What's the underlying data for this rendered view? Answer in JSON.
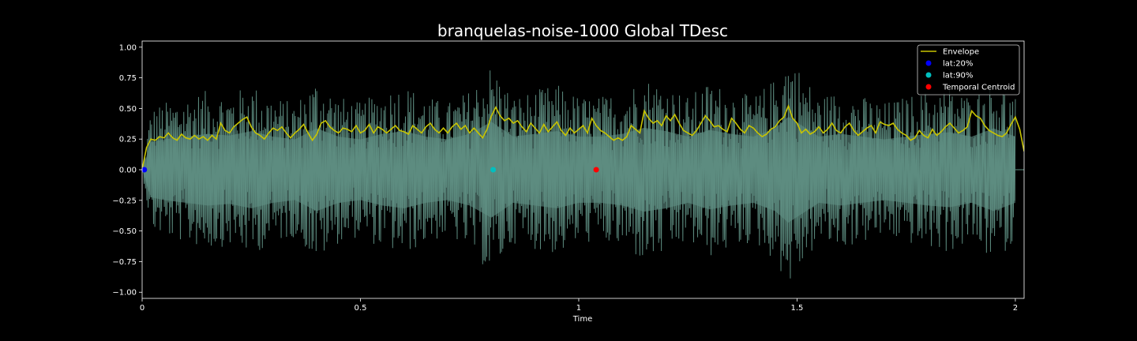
{
  "chart_data": {
    "type": "line",
    "title": "branquelas-noise-1000 Global TDesc",
    "xlabel": "Time",
    "ylabel": "",
    "xlim": [
      0,
      2.02
    ],
    "ylim": [
      -1.05,
      1.05
    ],
    "xticks": [
      0,
      0.5,
      1,
      1.5,
      2
    ],
    "xtick_labels": [
      "0",
      "0.5",
      "1",
      "1.5",
      "2"
    ],
    "yticks": [
      -1.0,
      -0.75,
      -0.5,
      -0.25,
      0.0,
      0.25,
      0.5,
      0.75,
      1.0
    ],
    "ytick_labels": [
      "−1.00",
      "−0.75",
      "−0.50",
      "−0.25",
      "0.00",
      "0.25",
      "0.50",
      "0.75",
      "1.00"
    ],
    "grid": false,
    "legend_position": "top-right",
    "signal": {
      "description_color": "#5f8f83",
      "fill_color": "#3a5650",
      "t_start": 0.0,
      "t_end": 2.0,
      "peak_envelope": [
        [
          0.0,
          0.0
        ],
        [
          0.02,
          0.5
        ],
        [
          0.05,
          0.55
        ],
        [
          0.1,
          0.6
        ],
        [
          0.15,
          0.65
        ],
        [
          0.2,
          0.62
        ],
        [
          0.25,
          0.7
        ],
        [
          0.3,
          0.6
        ],
        [
          0.35,
          0.55
        ],
        [
          0.4,
          0.75
        ],
        [
          0.45,
          0.6
        ],
        [
          0.5,
          0.55
        ],
        [
          0.55,
          0.65
        ],
        [
          0.6,
          0.7
        ],
        [
          0.65,
          0.6
        ],
        [
          0.7,
          0.55
        ],
        [
          0.75,
          0.65
        ],
        [
          0.8,
          0.87
        ],
        [
          0.85,
          0.6
        ],
        [
          0.9,
          0.65
        ],
        [
          0.95,
          0.7
        ],
        [
          1.0,
          0.6
        ],
        [
          1.05,
          0.6
        ],
        [
          1.1,
          0.65
        ],
        [
          1.15,
          0.76
        ],
        [
          1.2,
          0.7
        ],
        [
          1.25,
          0.6
        ],
        [
          1.3,
          0.72
        ],
        [
          1.35,
          0.65
        ],
        [
          1.4,
          0.6
        ],
        [
          1.45,
          0.75
        ],
        [
          1.48,
          0.96
        ],
        [
          1.55,
          0.6
        ],
        [
          1.6,
          0.65
        ],
        [
          1.65,
          0.6
        ],
        [
          1.7,
          0.55
        ],
        [
          1.75,
          0.6
        ],
        [
          1.8,
          0.65
        ],
        [
          1.85,
          0.68
        ],
        [
          1.9,
          0.6
        ],
        [
          1.95,
          0.75
        ],
        [
          2.0,
          0.6
        ]
      ]
    },
    "envelope": {
      "name": "Envelope",
      "color": "#c8c400",
      "points": [
        [
          0.0,
          0.0
        ],
        [
          0.01,
          0.18
        ],
        [
          0.02,
          0.25
        ],
        [
          0.03,
          0.24
        ],
        [
          0.04,
          0.27
        ],
        [
          0.05,
          0.26
        ],
        [
          0.06,
          0.3
        ],
        [
          0.07,
          0.26
        ],
        [
          0.08,
          0.24
        ],
        [
          0.09,
          0.29
        ],
        [
          0.1,
          0.26
        ],
        [
          0.11,
          0.25
        ],
        [
          0.12,
          0.28
        ],
        [
          0.13,
          0.25
        ],
        [
          0.14,
          0.27
        ],
        [
          0.15,
          0.24
        ],
        [
          0.16,
          0.28
        ],
        [
          0.17,
          0.25
        ],
        [
          0.18,
          0.38
        ],
        [
          0.19,
          0.32
        ],
        [
          0.2,
          0.3
        ],
        [
          0.21,
          0.35
        ],
        [
          0.22,
          0.38
        ],
        [
          0.23,
          0.41
        ],
        [
          0.24,
          0.43
        ],
        [
          0.25,
          0.35
        ],
        [
          0.26,
          0.3
        ],
        [
          0.27,
          0.28
        ],
        [
          0.28,
          0.25
        ],
        [
          0.29,
          0.3
        ],
        [
          0.3,
          0.34
        ],
        [
          0.31,
          0.32
        ],
        [
          0.32,
          0.35
        ],
        [
          0.33,
          0.3
        ],
        [
          0.34,
          0.26
        ],
        [
          0.35,
          0.3
        ],
        [
          0.36,
          0.33
        ],
        [
          0.37,
          0.37
        ],
        [
          0.38,
          0.3
        ],
        [
          0.39,
          0.24
        ],
        [
          0.4,
          0.29
        ],
        [
          0.41,
          0.38
        ],
        [
          0.42,
          0.4
        ],
        [
          0.43,
          0.35
        ],
        [
          0.44,
          0.32
        ],
        [
          0.45,
          0.3
        ],
        [
          0.46,
          0.34
        ],
        [
          0.47,
          0.33
        ],
        [
          0.48,
          0.31
        ],
        [
          0.49,
          0.36
        ],
        [
          0.5,
          0.3
        ],
        [
          0.51,
          0.32
        ],
        [
          0.52,
          0.37
        ],
        [
          0.53,
          0.3
        ],
        [
          0.54,
          0.35
        ],
        [
          0.55,
          0.33
        ],
        [
          0.56,
          0.3
        ],
        [
          0.57,
          0.33
        ],
        [
          0.58,
          0.36
        ],
        [
          0.59,
          0.32
        ],
        [
          0.6,
          0.31
        ],
        [
          0.61,
          0.29
        ],
        [
          0.62,
          0.36
        ],
        [
          0.63,
          0.33
        ],
        [
          0.64,
          0.3
        ],
        [
          0.65,
          0.35
        ],
        [
          0.66,
          0.38
        ],
        [
          0.67,
          0.33
        ],
        [
          0.68,
          0.3
        ],
        [
          0.69,
          0.34
        ],
        [
          0.7,
          0.3
        ],
        [
          0.71,
          0.35
        ],
        [
          0.72,
          0.38
        ],
        [
          0.73,
          0.33
        ],
        [
          0.74,
          0.36
        ],
        [
          0.75,
          0.3
        ],
        [
          0.76,
          0.34
        ],
        [
          0.77,
          0.3
        ],
        [
          0.78,
          0.26
        ],
        [
          0.79,
          0.33
        ],
        [
          0.8,
          0.44
        ],
        [
          0.81,
          0.51
        ],
        [
          0.82,
          0.44
        ],
        [
          0.83,
          0.4
        ],
        [
          0.84,
          0.42
        ],
        [
          0.85,
          0.38
        ],
        [
          0.86,
          0.4
        ],
        [
          0.87,
          0.35
        ],
        [
          0.88,
          0.31
        ],
        [
          0.89,
          0.38
        ],
        [
          0.9,
          0.34
        ],
        [
          0.91,
          0.3
        ],
        [
          0.92,
          0.37
        ],
        [
          0.93,
          0.31
        ],
        [
          0.94,
          0.35
        ],
        [
          0.95,
          0.39
        ],
        [
          0.96,
          0.32
        ],
        [
          0.97,
          0.28
        ],
        [
          0.98,
          0.34
        ],
        [
          0.99,
          0.3
        ],
        [
          1.0,
          0.33
        ],
        [
          1.01,
          0.36
        ],
        [
          1.02,
          0.3
        ],
        [
          1.03,
          0.42
        ],
        [
          1.04,
          0.36
        ],
        [
          1.05,
          0.32
        ],
        [
          1.06,
          0.3
        ],
        [
          1.07,
          0.27
        ],
        [
          1.08,
          0.24
        ],
        [
          1.09,
          0.26
        ],
        [
          1.1,
          0.24
        ],
        [
          1.11,
          0.27
        ],
        [
          1.12,
          0.36
        ],
        [
          1.13,
          0.33
        ],
        [
          1.14,
          0.3
        ],
        [
          1.15,
          0.48
        ],
        [
          1.16,
          0.42
        ],
        [
          1.17,
          0.38
        ],
        [
          1.18,
          0.4
        ],
        [
          1.19,
          0.36
        ],
        [
          1.2,
          0.44
        ],
        [
          1.21,
          0.4
        ],
        [
          1.22,
          0.45
        ],
        [
          1.23,
          0.38
        ],
        [
          1.24,
          0.32
        ],
        [
          1.25,
          0.3
        ],
        [
          1.26,
          0.28
        ],
        [
          1.27,
          0.32
        ],
        [
          1.28,
          0.38
        ],
        [
          1.29,
          0.44
        ],
        [
          1.3,
          0.4
        ],
        [
          1.31,
          0.35
        ],
        [
          1.32,
          0.36
        ],
        [
          1.33,
          0.33
        ],
        [
          1.34,
          0.31
        ],
        [
          1.35,
          0.42
        ],
        [
          1.36,
          0.38
        ],
        [
          1.37,
          0.33
        ],
        [
          1.38,
          0.3
        ],
        [
          1.39,
          0.36
        ],
        [
          1.4,
          0.34
        ],
        [
          1.41,
          0.3
        ],
        [
          1.42,
          0.27
        ],
        [
          1.43,
          0.29
        ],
        [
          1.44,
          0.33
        ],
        [
          1.45,
          0.35
        ],
        [
          1.46,
          0.4
        ],
        [
          1.47,
          0.43
        ],
        [
          1.48,
          0.52
        ],
        [
          1.49,
          0.42
        ],
        [
          1.5,
          0.38
        ],
        [
          1.51,
          0.3
        ],
        [
          1.52,
          0.33
        ],
        [
          1.53,
          0.29
        ],
        [
          1.54,
          0.31
        ],
        [
          1.55,
          0.35
        ],
        [
          1.56,
          0.3
        ],
        [
          1.57,
          0.33
        ],
        [
          1.58,
          0.38
        ],
        [
          1.59,
          0.32
        ],
        [
          1.6,
          0.3
        ],
        [
          1.61,
          0.35
        ],
        [
          1.62,
          0.38
        ],
        [
          1.63,
          0.32
        ],
        [
          1.64,
          0.28
        ],
        [
          1.65,
          0.31
        ],
        [
          1.66,
          0.34
        ],
        [
          1.67,
          0.36
        ],
        [
          1.68,
          0.3
        ],
        [
          1.69,
          0.39
        ],
        [
          1.7,
          0.37
        ],
        [
          1.71,
          0.36
        ],
        [
          1.72,
          0.38
        ],
        [
          1.73,
          0.33
        ],
        [
          1.74,
          0.3
        ],
        [
          1.75,
          0.28
        ],
        [
          1.76,
          0.24
        ],
        [
          1.77,
          0.26
        ],
        [
          1.78,
          0.32
        ],
        [
          1.79,
          0.28
        ],
        [
          1.8,
          0.26
        ],
        [
          1.81,
          0.33
        ],
        [
          1.82,
          0.28
        ],
        [
          1.83,
          0.31
        ],
        [
          1.84,
          0.35
        ],
        [
          1.85,
          0.38
        ],
        [
          1.86,
          0.34
        ],
        [
          1.87,
          0.3
        ],
        [
          1.88,
          0.32
        ],
        [
          1.89,
          0.35
        ],
        [
          1.9,
          0.48
        ],
        [
          1.91,
          0.44
        ],
        [
          1.92,
          0.42
        ],
        [
          1.93,
          0.36
        ],
        [
          1.94,
          0.32
        ],
        [
          1.95,
          0.3
        ],
        [
          1.96,
          0.28
        ],
        [
          1.97,
          0.27
        ],
        [
          1.98,
          0.3
        ],
        [
          1.99,
          0.37
        ],
        [
          2.0,
          0.43
        ],
        [
          2.01,
          0.33
        ],
        [
          2.02,
          0.15
        ]
      ]
    },
    "markers": [
      {
        "name": "lat:20%",
        "x": 0.005,
        "y": 0.0,
        "color": "#0000ff"
      },
      {
        "name": "lat:90%",
        "x": 0.804,
        "y": 0.0,
        "color": "#00bfbf"
      },
      {
        "name": "Temporal Centroid",
        "x": 1.04,
        "y": 0.0,
        "color": "#ff0000"
      }
    ]
  }
}
